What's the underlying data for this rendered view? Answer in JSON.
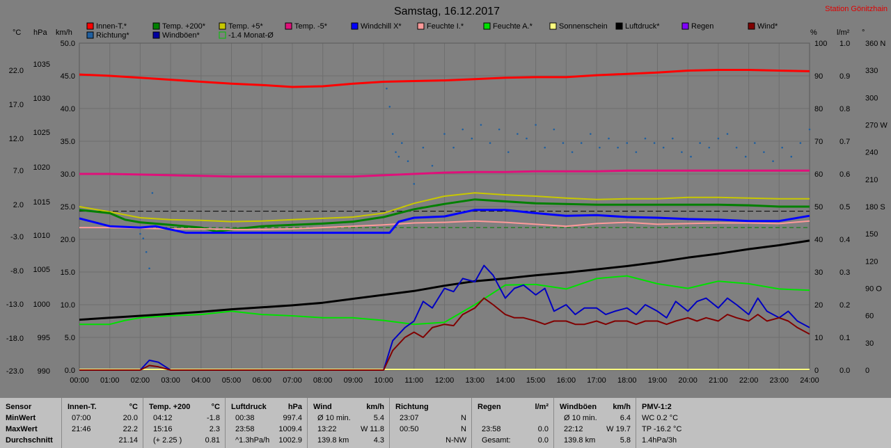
{
  "header": {
    "title": "Samstag, 16.12.2017",
    "station": "Station Gönitzhain"
  },
  "axis_units": {
    "celsius": "°C",
    "hpa": "hPa",
    "kmh": "km/h",
    "percent": "%",
    "lm2": "l/m²",
    "deg": "°"
  },
  "legend": [
    {
      "label": "Innen-T.*",
      "color": "#ff0000"
    },
    {
      "label": "Temp. +200*",
      "color": "#008000"
    },
    {
      "label": "Temp. +5*",
      "color": "#c8c800"
    },
    {
      "label": "Temp. -5*",
      "color": "#e0107a"
    },
    {
      "label": "Windchill X*",
      "color": "#0000ff"
    },
    {
      "label": "Feuchte I.*",
      "color": "#ff9a9a"
    },
    {
      "label": "Feuchte A.*",
      "color": "#00e000"
    },
    {
      "label": "Sonnenschein",
      "color": "#ffff80"
    },
    {
      "label": "Luftdruck*",
      "color": "#000000"
    },
    {
      "label": "Regen",
      "color": "#8000ff"
    },
    {
      "label": "Wind*",
      "color": "#800000"
    },
    {
      "label": "Richtung*",
      "color": "#1f5f9f"
    },
    {
      "label": "Windböen*",
      "color": "#0000a0"
    },
    {
      "label": "-1.4 Monat-Ø",
      "color": "#00c000"
    }
  ],
  "chart_data": {
    "type": "line",
    "title": "Samstag, 16.12.2017",
    "x_ticks": [
      "00:00",
      "01:00",
      "02:00",
      "03:00",
      "04:00",
      "05:00",
      "06:00",
      "07:00",
      "08:00",
      "09:00",
      "10:00",
      "11:00",
      "12:00",
      "13:00",
      "14:00",
      "15:00",
      "16:00",
      "17:00",
      "18:00",
      "19:00",
      "20:00",
      "21:00",
      "22:00",
      "23:00",
      "24:00"
    ],
    "y_left_celsius": [
      "22.0",
      "17.0",
      "12.0",
      "7.0",
      "2.0",
      "-3.0",
      "-8.0",
      "-13.0",
      "-18.0",
      "-23.0"
    ],
    "y_left_hpa": [
      "1035",
      "1030",
      "1025",
      "1020",
      "1015",
      "1010",
      "1005",
      "1000",
      "995",
      "990"
    ],
    "y_left_kmh": [
      "50.0",
      "45.0",
      "40.0",
      "35.0",
      "30.0",
      "25.0",
      "20.0",
      "15.0",
      "10.0",
      "5.0",
      "0.0"
    ],
    "y_right_percent": [
      "100",
      "90",
      "80",
      "70",
      "60",
      "50",
      "40",
      "30",
      "20",
      "10",
      "0"
    ],
    "y_right_lm2": [
      "1.0",
      "0.9",
      "0.8",
      "0.7",
      "0.6",
      "0.5",
      "0.4",
      "0.3",
      "0.2",
      "0.1",
      "0.0"
    ],
    "y_right_deg": [
      "360 N",
      "330",
      "300",
      "270 W",
      "240",
      "210",
      "180 S",
      "150",
      "120",
      "90 O",
      "60",
      "30",
      "0"
    ],
    "xlim": [
      0,
      24
    ],
    "kmh_lim": [
      0,
      50
    ],
    "grid": true,
    "series": [
      {
        "name": "Innen-T.*",
        "color": "#ff0000",
        "width": 3,
        "axis": "kmh",
        "x": [
          0,
          1,
          2,
          3,
          4,
          5,
          6,
          7,
          8,
          9,
          10,
          11,
          12,
          13,
          14,
          15,
          16,
          17,
          18,
          19,
          20,
          21,
          22,
          23,
          24
        ],
        "y": [
          45.2,
          45.0,
          44.7,
          44.4,
          44.1,
          43.8,
          43.6,
          43.3,
          43.4,
          43.8,
          44.1,
          44.2,
          44.3,
          44.5,
          44.7,
          44.8,
          44.8,
          45.1,
          45.3,
          45.5,
          45.8,
          45.9,
          45.9,
          45.8,
          45.7
        ]
      },
      {
        "name": "Temp. -5*",
        "color": "#e0107a",
        "width": 3,
        "axis": "kmh",
        "x": [
          0,
          1,
          2,
          3,
          4,
          5,
          6,
          7,
          8,
          9,
          10,
          11,
          12,
          13,
          14,
          15,
          16,
          17,
          18,
          19,
          20,
          21,
          22,
          23,
          24
        ],
        "y": [
          30.0,
          30.0,
          29.9,
          29.8,
          29.7,
          29.6,
          29.6,
          29.6,
          29.6,
          29.6,
          29.8,
          30.0,
          30.2,
          30.3,
          30.3,
          30.4,
          30.4,
          30.4,
          30.5,
          30.5,
          30.5,
          30.5,
          30.5,
          30.5,
          30.5
        ]
      },
      {
        "name": "Temp. +5*",
        "color": "#c8c800",
        "width": 2,
        "axis": "kmh",
        "x": [
          0,
          0.5,
          1,
          2,
          3,
          4,
          5,
          6,
          7,
          8,
          9,
          10,
          11,
          12,
          13,
          14,
          15,
          16,
          17,
          18,
          19,
          20,
          21,
          22,
          23,
          24
        ],
        "y": [
          25.0,
          24.6,
          24.2,
          23.3,
          23.0,
          22.9,
          22.7,
          22.8,
          23.0,
          23.2,
          23.4,
          24.0,
          25.5,
          26.6,
          27.1,
          26.8,
          26.6,
          26.3,
          26.1,
          26.2,
          26.2,
          26.4,
          26.4,
          26.3,
          26.2,
          26.2
        ]
      },
      {
        "name": "Temp. +200*",
        "color": "#008000",
        "width": 3,
        "axis": "kmh",
        "x": [
          0,
          1,
          1.5,
          2,
          3,
          4,
          4.5,
          5,
          6,
          7,
          8,
          9,
          10,
          11,
          12,
          13,
          14,
          15,
          16,
          17,
          18,
          19,
          20,
          21,
          22,
          23,
          24
        ],
        "y": [
          24.5,
          24.0,
          23.0,
          22.6,
          22.2,
          21.8,
          21.2,
          21.5,
          22.0,
          22.2,
          22.4,
          22.7,
          23.4,
          24.6,
          25.4,
          26.1,
          25.8,
          25.5,
          25.4,
          25.3,
          25.3,
          25.3,
          25.3,
          25.3,
          25.2,
          25.0,
          25.0
        ]
      },
      {
        "name": "Feuchte I.*",
        "color": "#ff9a9a",
        "width": 2,
        "axis": "kmh",
        "x": [
          0,
          1,
          2,
          3,
          4,
          5,
          6,
          7,
          8,
          9,
          10,
          11,
          12,
          13,
          14,
          15,
          16,
          17,
          18,
          19,
          20,
          21,
          22,
          23,
          24
        ],
        "y": [
          21.8,
          21.8,
          21.7,
          21.6,
          21.6,
          21.5,
          21.5,
          21.6,
          21.8,
          22.0,
          22.2,
          22.5,
          22.6,
          22.8,
          22.6,
          22.3,
          22.0,
          22.4,
          22.6,
          22.3,
          22.4,
          22.5,
          22.5,
          22.4,
          22.8
        ]
      },
      {
        "name": "Windchill X*",
        "color": "#0000ff",
        "width": 3,
        "axis": "kmh",
        "x": [
          0,
          1,
          2,
          2.5,
          3,
          3.5,
          4,
          5,
          6,
          7,
          8,
          9,
          10,
          10.2,
          10.5,
          11,
          12,
          13,
          14,
          15,
          16,
          17,
          18,
          19,
          20,
          21,
          22,
          23,
          24
        ],
        "y": [
          23.2,
          22.0,
          21.8,
          22.0,
          21.5,
          21.0,
          21.0,
          21.0,
          21.0,
          21.0,
          21.0,
          21.0,
          21.0,
          21.0,
          22.7,
          23.3,
          23.5,
          24.5,
          24.5,
          24.0,
          23.6,
          23.7,
          23.4,
          23.3,
          23.1,
          23.0,
          22.8,
          22.8,
          23.6
        ]
      },
      {
        "name": "Luftdruck*",
        "color": "#000000",
        "width": 3,
        "axis": "kmh",
        "x": [
          0,
          1,
          2,
          3,
          4,
          5,
          6,
          7,
          8,
          9,
          10,
          11,
          12,
          13,
          14,
          15,
          16,
          17,
          18,
          19,
          20,
          21,
          22,
          23,
          24
        ],
        "y": [
          7.7,
          8.0,
          8.3,
          8.6,
          8.9,
          9.3,
          9.6,
          9.9,
          10.3,
          10.9,
          11.5,
          12.1,
          12.9,
          13.6,
          14.0,
          14.5,
          14.9,
          15.4,
          15.9,
          16.5,
          17.2,
          17.8,
          18.5,
          19.1,
          19.8
        ]
      },
      {
        "name": "Feuchte A.*",
        "color": "#00e000",
        "width": 2,
        "axis": "kmh",
        "x": [
          0,
          1,
          1.5,
          2,
          3,
          4,
          5,
          6,
          7,
          8,
          9,
          10,
          11,
          12,
          13,
          14,
          15,
          16,
          17,
          18,
          19,
          20,
          21,
          22,
          23,
          24
        ],
        "y": [
          7.0,
          7.0,
          7.6,
          8.0,
          8.3,
          8.5,
          9.0,
          8.5,
          8.3,
          8.0,
          8.0,
          7.6,
          7.0,
          7.3,
          10.0,
          13.0,
          13.1,
          12.4,
          14.0,
          14.4,
          13.2,
          12.5,
          13.6,
          13.2,
          12.4,
          12.2
        ]
      },
      {
        "name": "Windböen*",
        "color": "#0000c0",
        "width": 2,
        "axis": "kmh",
        "x": [
          0,
          1,
          2,
          2.3,
          2.6,
          3,
          4,
          5,
          6,
          7,
          8,
          9,
          9.9,
          10.0,
          10.3,
          10.7,
          11,
          11.3,
          11.6,
          12,
          12.3,
          12.6,
          13,
          13.3,
          13.6,
          14,
          14.3,
          14.6,
          15,
          15.3,
          15.6,
          16,
          16.3,
          16.6,
          17,
          17.3,
          17.6,
          18,
          18.3,
          18.6,
          19,
          19.3,
          19.6,
          20,
          20.3,
          20.6,
          21,
          21.3,
          21.6,
          22,
          22.3,
          22.6,
          23,
          23.3,
          23.6,
          24
        ],
        "y": [
          0,
          0,
          0,
          1.5,
          1.2,
          0,
          0,
          0,
          0,
          0,
          0,
          0,
          0,
          0,
          4.5,
          6.5,
          7.5,
          10.5,
          9.5,
          12.5,
          12.0,
          14.0,
          13.5,
          16.0,
          14.5,
          11.0,
          12.5,
          13.0,
          11.5,
          12.5,
          9.0,
          10.0,
          8.5,
          9.5,
          9.5,
          8.5,
          9.0,
          9.5,
          8.5,
          10.0,
          9.0,
          8.0,
          10.5,
          9.0,
          10.5,
          11.0,
          9.5,
          11.0,
          10.0,
          8.5,
          11.0,
          9.0,
          8.0,
          9.0,
          7.5,
          6.5
        ]
      },
      {
        "name": "Wind*",
        "color": "#800000",
        "width": 2,
        "axis": "kmh",
        "x": [
          0,
          1,
          2,
          2.3,
          2.6,
          3,
          4,
          5,
          6,
          7,
          8,
          9,
          9.9,
          10.0,
          10.3,
          10.7,
          11,
          11.3,
          11.6,
          12,
          12.3,
          12.6,
          13,
          13.3,
          13.6,
          14,
          14.3,
          14.6,
          15,
          15.3,
          15.6,
          16,
          16.3,
          16.6,
          17,
          17.3,
          17.6,
          18,
          18.3,
          18.6,
          19,
          19.3,
          19.6,
          20,
          20.3,
          20.6,
          21,
          21.3,
          21.6,
          22,
          22.3,
          22.6,
          23,
          23.3,
          23.6,
          24
        ],
        "y": [
          0,
          0,
          0,
          0.7,
          0.5,
          0,
          0,
          0,
          0,
          0,
          0,
          0,
          0,
          0,
          3.0,
          5.0,
          5.8,
          5.0,
          6.5,
          7.0,
          6.8,
          8.5,
          9.5,
          11.0,
          10.0,
          8.5,
          8.0,
          8.0,
          7.5,
          7.0,
          7.5,
          7.5,
          7.0,
          7.0,
          7.5,
          7.0,
          7.5,
          7.5,
          7.0,
          7.5,
          7.5,
          7.0,
          7.5,
          8.0,
          7.5,
          8.0,
          7.5,
          8.5,
          8.0,
          7.5,
          8.5,
          7.5,
          8.0,
          7.5,
          6.5,
          5.5
        ]
      }
    ],
    "refline": {
      "name": "-1.4 Monat-Ø",
      "color": "#008000",
      "axis": "kmh",
      "y": 21.8
    },
    "refline_black": {
      "axis": "kmh",
      "y": 24.3
    },
    "direction_points": {
      "name": "Richtung*",
      "color": "#1f5f9f",
      "axis": "deg",
      "x": [
        2.0,
        2.1,
        2.2,
        2.3,
        2.4,
        10.1,
        10.2,
        10.3,
        10.4,
        10.5,
        10.6,
        10.8,
        11.0,
        11.3,
        11.6,
        12.0,
        12.3,
        12.6,
        12.9,
        13.2,
        13.5,
        13.8,
        14.1,
        14.4,
        14.7,
        15.0,
        15.3,
        15.6,
        15.9,
        16.2,
        16.5,
        16.8,
        17.1,
        17.4,
        17.7,
        18.0,
        18.3,
        18.6,
        18.9,
        19.2,
        19.5,
        19.8,
        20.1,
        20.4,
        20.7,
        21.0,
        21.3,
        21.6,
        21.9,
        22.2,
        22.5,
        22.8,
        23.1,
        23.4,
        23.7,
        24.0
      ],
      "y": [
        150,
        145,
        130,
        112,
        195,
        310,
        290,
        260,
        240,
        235,
        250,
        230,
        205,
        245,
        225,
        260,
        245,
        265,
        255,
        270,
        250,
        265,
        240,
        260,
        255,
        270,
        245,
        265,
        250,
        240,
        250,
        260,
        245,
        255,
        245,
        250,
        240,
        255,
        250,
        245,
        255,
        240,
        235,
        250,
        245,
        255,
        260,
        245,
        235,
        250,
        240,
        230,
        245,
        235,
        250,
        265
      ]
    }
  },
  "stats": {
    "sensor": {
      "title": "Sensor",
      "rows": [
        "MinWert",
        "MaxWert",
        "Durchschnitt"
      ]
    },
    "innen": {
      "title": "Innen-T.",
      "unit": "°C",
      "rows": [
        [
          "07:00",
          "20.0"
        ],
        [
          "21:46",
          "22.2"
        ],
        [
          "",
          "21.14"
        ]
      ]
    },
    "temp200": {
      "title": "Temp. +200",
      "unit": "°C",
      "rows": [
        [
          "04:12",
          "-1.8"
        ],
        [
          "15:16",
          "2.3"
        ],
        [
          "(+ 2.25 )",
          "0.81"
        ]
      ]
    },
    "luftdruck": {
      "title": "Luftdruck",
      "unit": "hPa",
      "rows": [
        [
          "00:38",
          "997.4"
        ],
        [
          "23:58",
          "1009.4"
        ],
        [
          "^1.3hPa/h",
          "1002.9"
        ]
      ]
    },
    "wind": {
      "title": "Wind",
      "unit": "km/h",
      "rows": [
        [
          "Ø 10 min.",
          "5.4"
        ],
        [
          "13:22",
          "W 11.8"
        ],
        [
          "139.8 km",
          "4.3"
        ]
      ]
    },
    "richtung": {
      "title": "Richtung",
      "unit": "",
      "rows": [
        [
          "23:07",
          "N"
        ],
        [
          "00:50",
          "N"
        ],
        [
          "",
          "N-NW"
        ]
      ]
    },
    "regen": {
      "title": "Regen",
      "unit": "l/m²",
      "rows": [
        [
          "",
          ""
        ],
        [
          "23:58",
          "0.0"
        ],
        [
          "Gesamt:",
          "0.0"
        ]
      ]
    },
    "windboen": {
      "title": "Windböen",
      "unit": "km/h",
      "rows": [
        [
          "Ø 10 min.",
          "6.4"
        ],
        [
          "22:12",
          "W 19.7"
        ],
        [
          "139.8 km",
          "5.8"
        ]
      ]
    },
    "pmv": {
      "title": "PMV-1:2",
      "unit": "",
      "rows": [
        [
          "WC 0.2 °C",
          ""
        ],
        [
          "TP -16.2 °C",
          ""
        ],
        [
          "1.4hPa/3h",
          ""
        ]
      ]
    }
  }
}
